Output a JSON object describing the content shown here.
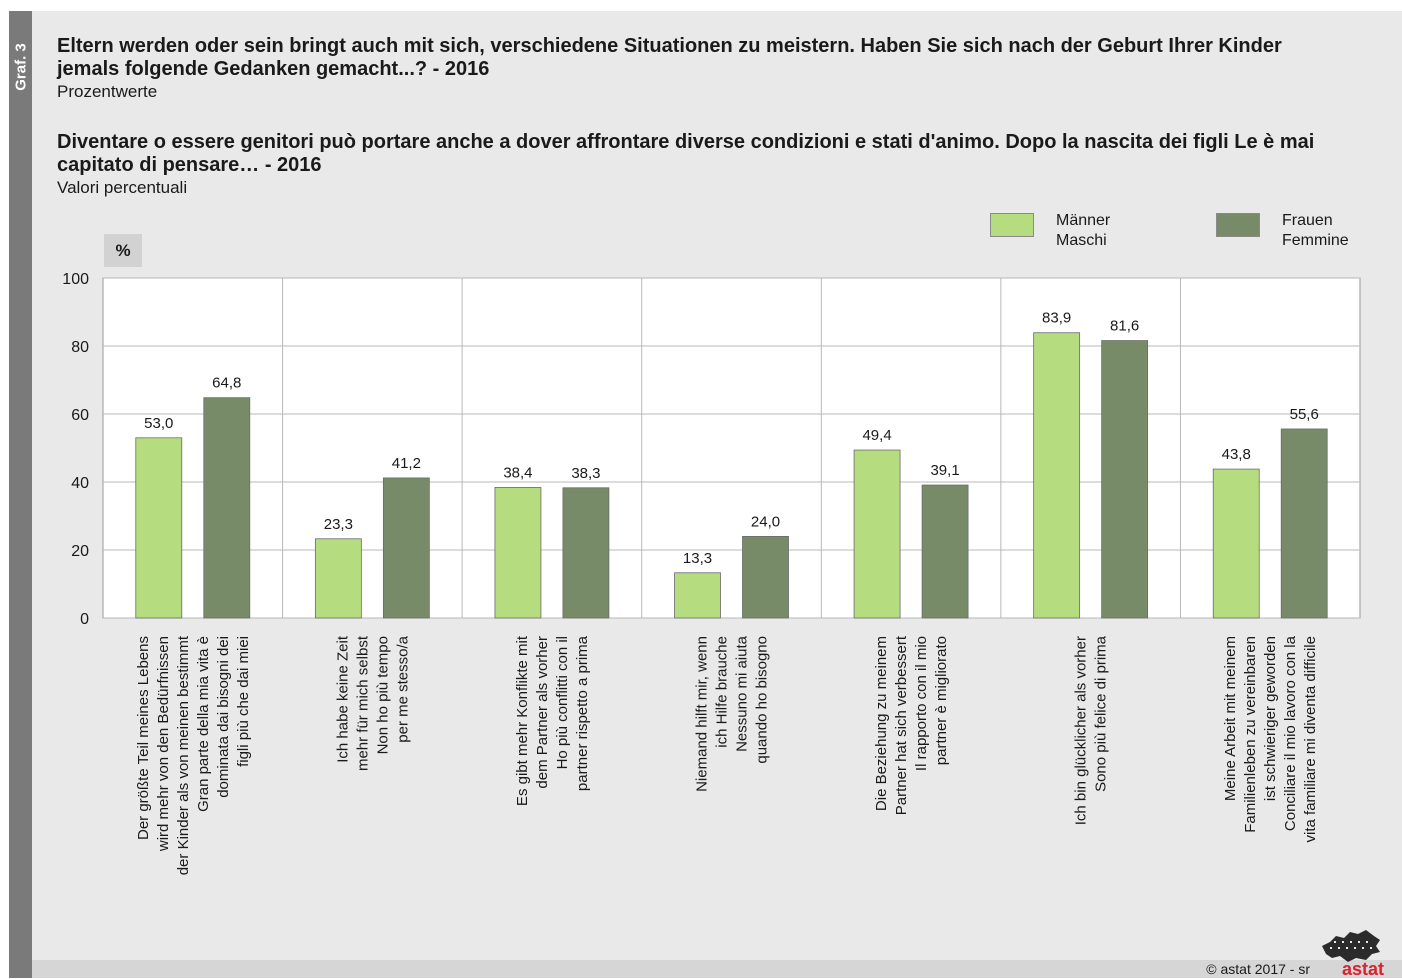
{
  "header": {
    "graf_label": "Graf. 3",
    "title_de": "Eltern werden oder sein bringt auch mit sich, verschiedene Situationen zu meistern. Haben Sie sich nach der Geburt Ihrer Kinder jemals folgende Gedanken gemacht...? - 2016",
    "subtitle_de": "Prozentwerte",
    "title_it": "Diventare o essere genitori può portare anche a dover affrontare diverse condizioni e stati d'animo. Dopo la nascita dei figli Le è mai capitato di pensare… - 2016",
    "subtitle_it": "Valori percentuali"
  },
  "legend": {
    "men_de": "Männer",
    "men_it": "Maschi",
    "women_de": "Frauen",
    "women_it": "Femmine"
  },
  "footer": {
    "copyright": "© astat 2017 - sr",
    "logo_text": "astat"
  },
  "colors": {
    "men": "#b5dd7f",
    "women": "#788b69",
    "grid": "#b8b8b8"
  },
  "chart_data": {
    "type": "bar",
    "ylabel": "%",
    "ylim": [
      0,
      100
    ],
    "yticks": [
      0,
      20,
      40,
      60,
      80,
      100
    ],
    "grid": true,
    "legend_position": "top-right",
    "categories": [
      [
        "Der größte Teil meines Lebens",
        "wird mehr von den Bedürfnissen",
        "der Kinder als von meinen bestimmt",
        "Gran parte della mia vita è",
        "dominata dai bisogni dei",
        "figli più che dai miei"
      ],
      [
        "Ich habe keine Zeit",
        "mehr für mich selbst",
        "Non ho più tempo",
        "per me stesso/a"
      ],
      [
        "Es gibt mehr Konflikte mit",
        "dem Partner als vorher",
        "Ho più conflitti con il",
        "partner rispetto a prima"
      ],
      [
        "Niemand hilft mir, wenn",
        "ich Hilfe brauche",
        "Nessuno mi aiuta",
        "quando ho bisogno"
      ],
      [
        "Die Beziehung zu meinem",
        "Partner hat sich verbessert",
        "Il rapporto con il mio",
        "partner è migliorato"
      ],
      [
        "Ich bin glücklicher als vorher",
        "Sono più felice di prima"
      ],
      [
        "Meine Arbeit mit meinem",
        "Familienleben zu vereinbaren",
        "ist schwieriger geworden",
        "Conciliare il mio lavoro con la",
        "vita familiare mi diventa difficile"
      ]
    ],
    "series": [
      {
        "name": "Männer / Maschi",
        "values": [
          53.0,
          23.3,
          38.4,
          13.3,
          49.4,
          83.9,
          43.8
        ],
        "labels": [
          "53,0",
          "23,3",
          "38,4",
          "13,3",
          "49,4",
          "83,9",
          "43,8"
        ]
      },
      {
        "name": "Frauen / Femmine",
        "values": [
          64.8,
          41.2,
          38.3,
          24.0,
          39.1,
          81.6,
          55.6
        ],
        "labels": [
          "64,8",
          "41,2",
          "38,3",
          "24,0",
          "39,1",
          "81,6",
          "55,6"
        ]
      }
    ]
  }
}
